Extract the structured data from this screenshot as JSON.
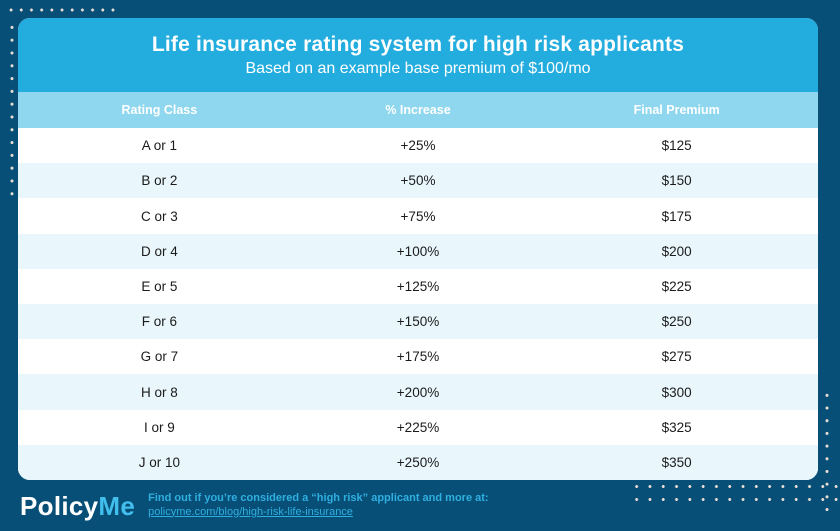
{
  "chart_data": {
    "type": "table",
    "title": "Life insurance rating system for high risk applicants",
    "subtitle": "Based on an example base premium of $100/mo",
    "columns": [
      "Rating Class",
      "% Increase",
      "Final Premium"
    ],
    "rows": [
      [
        "A or 1",
        "+25%",
        "$125"
      ],
      [
        "B or 2",
        "+50%",
        "$150"
      ],
      [
        "C or 3",
        "+75%",
        "$175"
      ],
      [
        "D or 4",
        "+100%",
        "$200"
      ],
      [
        "E or 5",
        "+125%",
        "$225"
      ],
      [
        "F or 6",
        "+150%",
        "$250"
      ],
      [
        "G or 7",
        "+175%",
        "$275"
      ],
      [
        "H or 8",
        "+200%",
        "$300"
      ],
      [
        "I or 9",
        "+225%",
        "$325"
      ],
      [
        "J or 10",
        "+250%",
        "$350"
      ]
    ],
    "layout_hints": {
      "alternating_rows": true,
      "column_alignment": "center"
    }
  },
  "footer": {
    "logo_part1": "Policy",
    "logo_part2": "Me",
    "tagline": "Find out if you’re considered a “high risk” applicant and more at:",
    "link": "policyme.com/blog/high-risk-life-insurance"
  },
  "colors": {
    "background_navy": "#074F77",
    "header_cyan": "#23ACDE",
    "table_header_blue": "#8FD7EE",
    "row_alt_tint": "#E9F7FC",
    "row_text": "#1B1B1B",
    "footer_text_cyan": "#2FAFE0",
    "logo_me_cyan": "#41BEEC",
    "dot_color": "#E8DDD4"
  }
}
